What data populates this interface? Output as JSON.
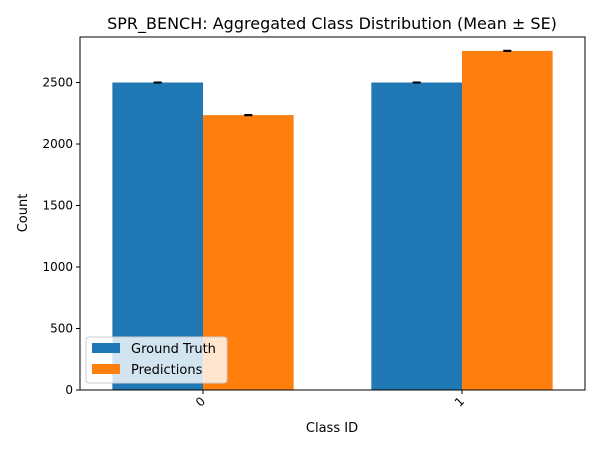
{
  "chart_data": {
    "type": "bar",
    "title": "SPR_BENCH: Aggregated Class Distribution (Mean ± SE)",
    "xlabel": "Class ID",
    "ylabel": "Count",
    "categories": [
      "0",
      "1"
    ],
    "series": [
      {
        "name": "Ground Truth",
        "values": [
          2500,
          2500
        ],
        "errors": [
          2,
          2
        ],
        "color": "#1f77b4"
      },
      {
        "name": "Predictions",
        "values": [
          2235,
          2757
        ],
        "errors": [
          3,
          3
        ],
        "color": "#ff7f0e"
      }
    ],
    "ylim": [
      0,
      2870
    ],
    "yticks": [
      0,
      500,
      1000,
      1500,
      2000,
      2500
    ],
    "grid": false,
    "legend_position": "lower-left"
  }
}
